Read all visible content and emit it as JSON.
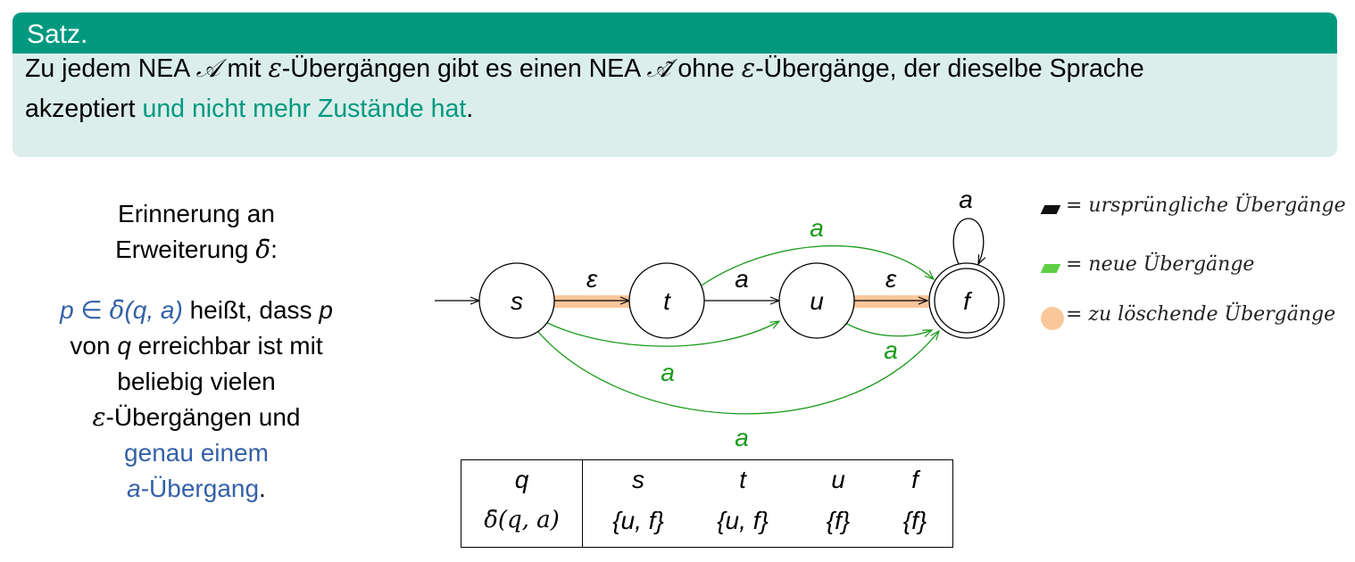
{
  "theorem": {
    "title": "Satz.",
    "text_1": "Zu jedem NEA ",
    "automaton": "𝒜",
    "text_2": " mit ",
    "epsilon": "ε",
    "text_3": "-Übergängen gibt es einen NEA ",
    "automaton_tilde": "𝒜̃",
    "text_4": " ohne ",
    "text_5": "-Übergänge, der dieselbe Sprache",
    "text_6": "akzeptiert ",
    "highlight": "und nicht mehr Zustände hat",
    "text_7": "."
  },
  "reminder": {
    "line_1": "Erinnerung an",
    "line_2_prefix": "Erweiterung ",
    "delta_bar": "δ̄",
    "line_2_suffix": ":",
    "def_p": "p",
    "def_in": " ∈ ",
    "def_delta": "δ̄",
    "def_args": "(q, a)",
    "def_rest": " heißt, dass ",
    "def_p2": "p",
    "line_4_prefix": "von ",
    "line_4_q": "q",
    "line_4_rest": " erreichbar ist mit",
    "line_5": "beliebig vielen",
    "line_6_eps": "ε",
    "line_6_rest": "-Übergängen und",
    "line_7": "genau einem",
    "line_8_a": "a",
    "line_8_rest": "-Übergang",
    "line_8_dot": "."
  },
  "automaton": {
    "states": [
      "s",
      "t",
      "u",
      "f"
    ],
    "edge_labels": {
      "s_t": "ε",
      "t_u": "a",
      "u_f": "ε",
      "f_loop": "a",
      "t_f": "a",
      "s_u": "a",
      "u_f_new": "a",
      "s_f": "a"
    }
  },
  "table": {
    "header": [
      "q",
      "s",
      "t",
      "u",
      "f"
    ],
    "row_label": "δ̄(q, a)",
    "row": [
      "{u, f}",
      "{u, f}",
      "{f}",
      "{f}"
    ]
  },
  "legend": {
    "items": [
      {
        "text": "= ursprüngliche Übergänge",
        "color": "#111111"
      },
      {
        "text": "= neue Übergänge",
        "color": "#5ccf43"
      },
      {
        "text": "= zu löschende Übergänge",
        "color": "#f9c79a"
      }
    ]
  },
  "colors": {
    "header": "#009980",
    "body": "#dbeeeb",
    "green": "#009980",
    "blue": "#3461a8",
    "edge_new": "#1a9a1a",
    "highlight": "#f9c79a"
  }
}
